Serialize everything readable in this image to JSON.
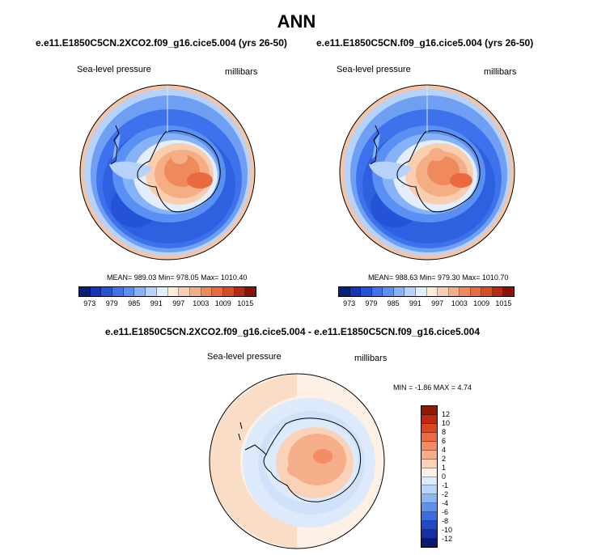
{
  "title": "ANN",
  "panels": [
    {
      "case": "e.e11.E1850C5CN.2XCO2.f09_g16.cice5.004 (yrs 26-50)",
      "variable": "Sea-level pressure",
      "units": "millibars",
      "stats": "MEAN= 989.03   Min= 978.05   Max= 1010.40"
    },
    {
      "case": "e.e11.E1850C5CN.f09_g16.cice5.004 (yrs 26-50)",
      "variable": "Sea-level pressure",
      "units": "millibars",
      "stats": "MEAN= 988.63   Min= 979.30   Max= 1010.70"
    }
  ],
  "abs_colorbar": {
    "ticks": [
      "973",
      "979",
      "985",
      "991",
      "997",
      "1003",
      "1009",
      "1015"
    ],
    "colors": [
      "#08207a",
      "#1236b4",
      "#2453d8",
      "#3d72ec",
      "#5a90f4",
      "#86b2f8",
      "#b6d2fb",
      "#e2edfd",
      "#fdebd9",
      "#f9ceaf",
      "#f4ad85",
      "#ef8a5d",
      "#e86a3e",
      "#d64a24",
      "#b42a12",
      "#8a1206"
    ]
  },
  "difference": {
    "title": "e.e11.E1850C5CN.2XCO2.f09_g16.cice5.004 - e.e11.E1850C5CN.f09_g16.cice5.004",
    "variable": "Sea-level pressure",
    "units": "millibars",
    "stats": "MIN =   -1.86 MAX =   4.74",
    "colorbar_ticks": [
      "12",
      "10",
      "8",
      "6",
      "4",
      "2",
      "1",
      "0",
      "-1",
      "-2",
      "-4",
      "-6",
      "-8",
      "-10",
      "-12"
    ],
    "colorbar_colors": [
      "#8e1a08",
      "#c02a10",
      "#dd4422",
      "#ee6a40",
      "#f38c62",
      "#f6ae8a",
      "#f9d2b8",
      "#fdf0e4",
      "#dceafb",
      "#b8d4f8",
      "#8cb6f2",
      "#5e92ea",
      "#3a6ee0",
      "#2248c8",
      "#1530a0",
      "#0a1a70"
    ]
  }
}
